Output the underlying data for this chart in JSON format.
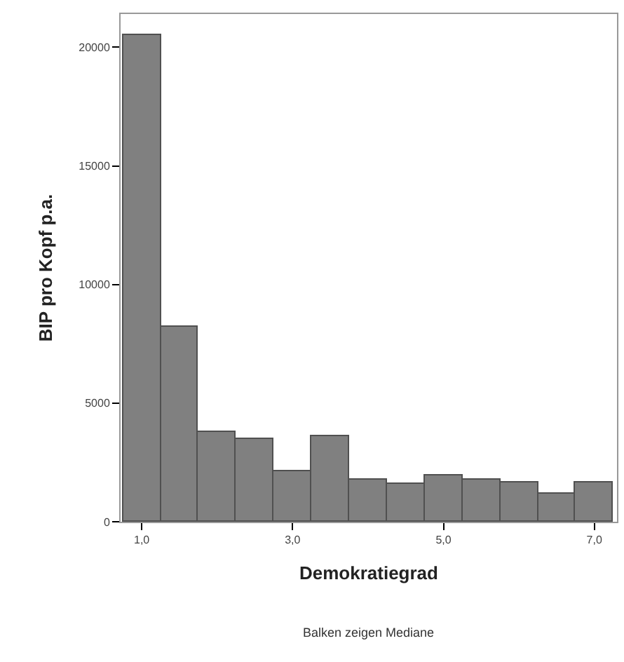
{
  "chart_data": {
    "type": "bar",
    "x": [
      1.0,
      1.5,
      2.0,
      2.5,
      3.0,
      3.5,
      4.0,
      4.5,
      5.0,
      5.5,
      6.0,
      6.5,
      7.0
    ],
    "values": [
      20500,
      8200,
      3800,
      3500,
      2100,
      3600,
      1800,
      1600,
      1950,
      1800,
      1650,
      1200,
      1650
    ],
    "color": "#808080",
    "xlabel": "Demokratiegrad",
    "ylabel": "BIP pro Kopf p.a.",
    "xlim": [
      0.72,
      7.3
    ],
    "xticks": [
      {
        "value": 1.0,
        "label": "1,0"
      },
      {
        "value": 3.0,
        "label": "3,0"
      },
      {
        "value": 5.0,
        "label": "5,0"
      },
      {
        "value": 7.0,
        "label": "7,0"
      }
    ],
    "ylim": [
      0,
      21400
    ],
    "yticks": [
      0,
      5000,
      10000,
      15000,
      20000
    ],
    "annotations": [
      "Balken zeigen Mediane"
    ]
  }
}
